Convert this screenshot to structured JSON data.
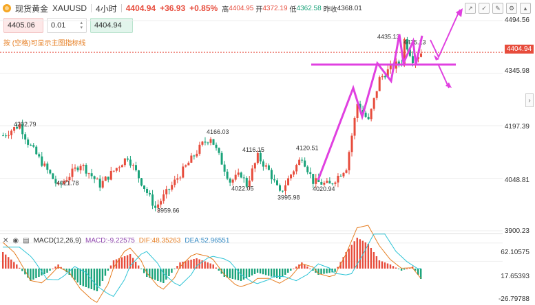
{
  "header": {
    "instrument_name": "现货黄金",
    "symbol": "XAUUSD",
    "timeframe": "4小时",
    "last": "4404.94",
    "change": "+36.93",
    "change_pct": "+0.85%",
    "high_label": "高",
    "high": "4404.95",
    "open_label": "开",
    "open": "4372.19",
    "low_label": "低",
    "low": "4362.58",
    "prev_close_label": "昨收",
    "prev_close": "4368.01"
  },
  "toolbar": {
    "icons": [
      "up-trend-icon",
      "check-icon",
      "pencil-icon",
      "settings-icon",
      "collapse-icon"
    ]
  },
  "trade": {
    "sell_price": "4405.06",
    "quantity": "0.01",
    "buy_price": "4404.94"
  },
  "note": "按 (空格)可显示主图指标线",
  "price_axis": {
    "labels": [
      "4494.56",
      "4345.98",
      "4197.39",
      "4048.81",
      "3900.23"
    ],
    "current_price": "4404.94"
  },
  "chart_data": {
    "type": "candlestick",
    "annotations": [
      "4202.79",
      "4021.78",
      "3959.66",
      "4166.03",
      "4022.05",
      "4116.15",
      "3995.98",
      "4120.51",
      "4020.94",
      "4435.13",
      "4435.13"
    ],
    "colors": {
      "up": "#e74c3c",
      "down": "#1aa37a",
      "drawing": "#e040e0"
    }
  },
  "macd": {
    "title": "MACD(12,26,9)",
    "macd_label": "MACD:",
    "macd_value": "-9.22575",
    "dif_label": "DIF:",
    "dif_value": "48.35263",
    "dea_label": "DEA:",
    "dea_value": "52.96551",
    "axis": [
      "62.10575",
      "17.65393",
      "-26.79788"
    ]
  }
}
